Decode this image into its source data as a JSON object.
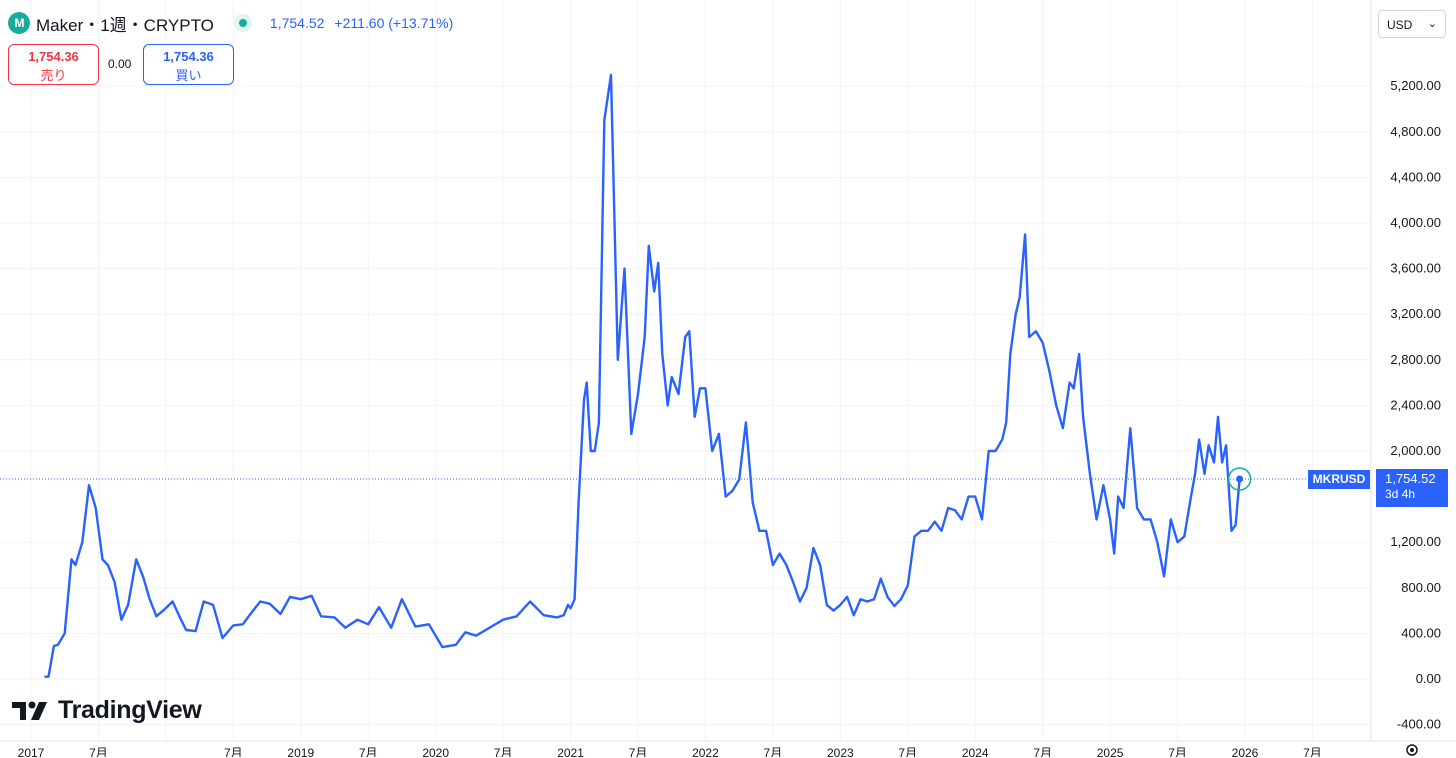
{
  "header": {
    "symbol_title": "Maker・1週・CRYPTO",
    "logo_letters": "M",
    "last_price": "1,754.52",
    "change": "+211.60 (+13.71%)"
  },
  "trade": {
    "sell_price": "1,754.36",
    "sell_label": "売り",
    "spread": "0.00",
    "buy_price": "1,754.36",
    "buy_label": "買い"
  },
  "currency_selector": {
    "value": "USD",
    "icon": "chevron-down-icon"
  },
  "price_label": {
    "symbol": "MKRUSD",
    "price": "1,754.52",
    "countdown": "3d 4h"
  },
  "branding": {
    "name": "TradingView",
    "icon": "tradingview-logo-icon"
  },
  "colors": {
    "line": "#2962ff",
    "grid": "#f0f3fa",
    "positive": "#2962ff",
    "sell": "#f23645"
  },
  "chart_data": {
    "type": "line",
    "series": [
      {
        "name": "MKRUSD",
        "x": [
          2017.1,
          2017.13,
          2017.17,
          2017.2,
          2017.25,
          2017.3,
          2017.33,
          2017.38,
          2017.43,
          2017.48,
          2017.53,
          2017.57,
          2017.62,
          2017.67,
          2017.72,
          2017.78,
          2017.83,
          2017.88,
          2017.93,
          2017.98,
          2018.05,
          2018.1,
          2018.15,
          2018.22,
          2018.28,
          2018.35,
          2018.42,
          2018.5,
          2018.57,
          2018.62,
          2018.7,
          2018.77,
          2018.85,
          2018.92,
          2019.0,
          2019.08,
          2019.15,
          2019.25,
          2019.33,
          2019.42,
          2019.5,
          2019.58,
          2019.67,
          2019.75,
          2019.85,
          2019.95,
          2020.05,
          2020.15,
          2020.22,
          2020.3,
          2020.4,
          2020.5,
          2020.6,
          2020.7,
          2020.8,
          2020.9,
          2020.95,
          2020.98,
          2021.0,
          2021.03,
          2021.06,
          2021.1,
          2021.12,
          2021.15,
          2021.18,
          2021.21,
          2021.25,
          2021.3,
          2021.35,
          2021.4,
          2021.45,
          2021.5,
          2021.52,
          2021.55,
          2021.58,
          2021.62,
          2021.65,
          2021.68,
          2021.72,
          2021.75,
          2021.8,
          2021.85,
          2021.88,
          2021.92,
          2021.96,
          2022.0,
          2022.05,
          2022.1,
          2022.15,
          2022.2,
          2022.25,
          2022.3,
          2022.35,
          2022.4,
          2022.45,
          2022.5,
          2022.55,
          2022.6,
          2022.65,
          2022.7,
          2022.75,
          2022.8,
          2022.85,
          2022.9,
          2022.95,
          2023.0,
          2023.05,
          2023.1,
          2023.15,
          2023.2,
          2023.25,
          2023.3,
          2023.35,
          2023.4,
          2023.45,
          2023.5,
          2023.55,
          2023.6,
          2023.65,
          2023.7,
          2023.75,
          2023.8,
          2023.85,
          2023.9,
          2023.95,
          2024.0,
          2024.05,
          2024.1,
          2024.15,
          2024.2,
          2024.23,
          2024.26,
          2024.3,
          2024.33,
          2024.37,
          2024.4,
          2024.45,
          2024.5,
          2024.55,
          2024.6,
          2024.65,
          2024.7,
          2024.73,
          2024.77,
          2024.8,
          2024.85,
          2024.9,
          2024.95,
          2025.0,
          2025.03,
          2025.06,
          2025.1,
          2025.15,
          2025.2,
          2025.25,
          2025.3,
          2025.35,
          2025.4,
          2025.45,
          2025.5,
          2025.55,
          2025.6,
          2025.63,
          2025.66,
          2025.7,
          2025.73,
          2025.77,
          2025.8,
          2025.83,
          2025.86,
          2025.9,
          2025.93,
          2025.96
        ],
        "y": [
          20,
          20,
          290,
          300,
          400,
          1050,
          1000,
          1200,
          1700,
          1500,
          1050,
          1000,
          850,
          520,
          650,
          1050,
          900,
          700,
          550,
          600,
          680,
          550,
          430,
          420,
          680,
          650,
          360,
          470,
          480,
          560,
          680,
          660,
          570,
          720,
          700,
          730,
          550,
          540,
          450,
          520,
          480,
          630,
          450,
          700,
          460,
          480,
          280,
          300,
          410,
          380,
          450,
          520,
          550,
          680,
          560,
          540,
          560,
          650,
          620,
          700,
          1550,
          2450,
          2600,
          2000,
          2000,
          2250,
          4900,
          5300,
          2800,
          3600,
          2150,
          2500,
          2700,
          3000,
          3800,
          3400,
          3650,
          2850,
          2400,
          2650,
          2500,
          3000,
          3050,
          2300,
          2550,
          2550,
          2000,
          2150,
          1600,
          1650,
          1750,
          2250,
          1550,
          1300,
          1300,
          1000,
          1100,
          1000,
          850,
          680,
          800,
          1150,
          1000,
          650,
          600,
          650,
          720,
          560,
          700,
          680,
          700,
          880,
          720,
          640,
          700,
          820,
          1250,
          1300,
          1300,
          1380,
          1300,
          1500,
          1480,
          1400,
          1600,
          1600,
          1400,
          2000,
          2000,
          2100,
          2250,
          2850,
          3200,
          3350,
          3900,
          3000,
          3050,
          2950,
          2700,
          2400,
          2200,
          2600,
          2550,
          2850,
          2300,
          1800,
          1400,
          1700,
          1400,
          1100,
          1600,
          1500,
          2200,
          1500,
          1400,
          1400,
          1200,
          900,
          1400,
          1200,
          1250,
          1600,
          1800,
          2100,
          1800,
          2050,
          1900,
          2300,
          1900,
          2050,
          1300,
          1350,
          1754.52
        ]
      }
    ],
    "x_ticks": [
      {
        "value": 2017,
        "label": "2017"
      },
      {
        "value": 2017.5,
        "label": "7月"
      },
      {
        "value": 2018,
        "label": ""
      },
      {
        "value": 2018.5,
        "label": "7月"
      },
      {
        "value": 2019,
        "label": "2019"
      },
      {
        "value": 2019.5,
        "label": "7月"
      },
      {
        "value": 2020,
        "label": "2020"
      },
      {
        "value": 2020.5,
        "label": "7月"
      },
      {
        "value": 2021,
        "label": "2021"
      },
      {
        "value": 2021.5,
        "label": "7月"
      },
      {
        "value": 2022,
        "label": "2022"
      },
      {
        "value": 2022.5,
        "label": "7月"
      },
      {
        "value": 2023,
        "label": "2023"
      },
      {
        "value": 2023.5,
        "label": "7月"
      },
      {
        "value": 2024,
        "label": "2024"
      },
      {
        "value": 2024.5,
        "label": "7月"
      },
      {
        "value": 2025,
        "label": "2025"
      },
      {
        "value": 2025.5,
        "label": "7月"
      },
      {
        "value": 2026,
        "label": "2026"
      },
      {
        "value": 2026.5,
        "label": "7月"
      }
    ],
    "y_ticks": [
      {
        "value": 5200,
        "label": "5,200.00"
      },
      {
        "value": 4800,
        "label": "4,800.00"
      },
      {
        "value": 4400,
        "label": "4,400.00"
      },
      {
        "value": 4000,
        "label": "4,000.00"
      },
      {
        "value": 3600,
        "label": "3,600.00"
      },
      {
        "value": 3200,
        "label": "3,200.00"
      },
      {
        "value": 2800,
        "label": "2,800.00"
      },
      {
        "value": 2400,
        "label": "2,400.00"
      },
      {
        "value": 2000,
        "label": "2,000.00"
      },
      {
        "value": 1200,
        "label": "1,200.00"
      },
      {
        "value": 800,
        "label": "800.00"
      },
      {
        "value": 400,
        "label": "400.00"
      },
      {
        "value": 0,
        "label": "0.00"
      },
      {
        "value": -400,
        "label": "-400.00"
      }
    ],
    "current_price": 1754.52,
    "xlim": [
      2016.8,
      2027.0
    ],
    "ylim": [
      -500,
      5800
    ],
    "grid": true,
    "legend": "none"
  }
}
